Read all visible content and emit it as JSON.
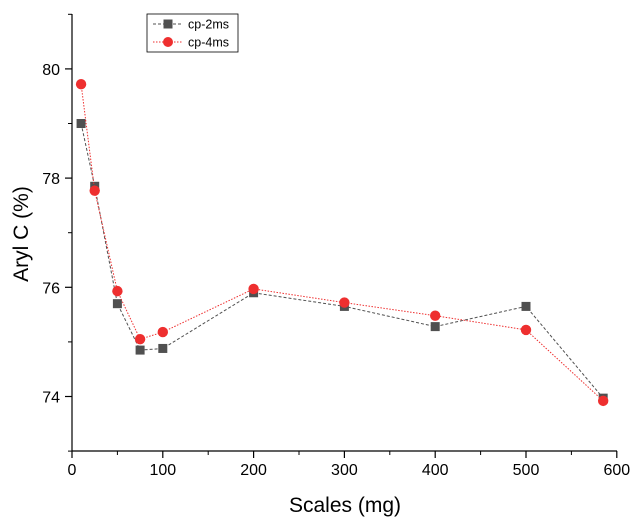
{
  "chart_data": {
    "type": "line",
    "xlabel": "Scales (mg)",
    "ylabel": "Aryl C (%)",
    "xlim": [
      0,
      600
    ],
    "ylim": [
      73,
      81
    ],
    "x_ticks": [
      0,
      100,
      200,
      300,
      400,
      500,
      600
    ],
    "y_ticks": [
      74,
      76,
      78,
      80
    ],
    "grid": false,
    "legend_position": "top-left",
    "series": [
      {
        "name": "cp-2ms",
        "marker": "square",
        "color": "#505050",
        "line_style": "dashed",
        "x": [
          10,
          25,
          50,
          75,
          100,
          200,
          300,
          400,
          500,
          585
        ],
        "y": [
          79.0,
          77.85,
          75.7,
          74.85,
          74.88,
          75.9,
          75.65,
          75.28,
          75.65,
          73.97
        ]
      },
      {
        "name": "cp-4ms",
        "marker": "circle",
        "color": "#ee2f2f",
        "line_style": "dotted",
        "x": [
          10,
          25,
          50,
          75,
          100,
          200,
          300,
          400,
          500,
          585
        ],
        "y": [
          79.72,
          77.77,
          75.93,
          75.05,
          75.18,
          75.97,
          75.72,
          75.48,
          75.22,
          73.92
        ]
      }
    ]
  }
}
